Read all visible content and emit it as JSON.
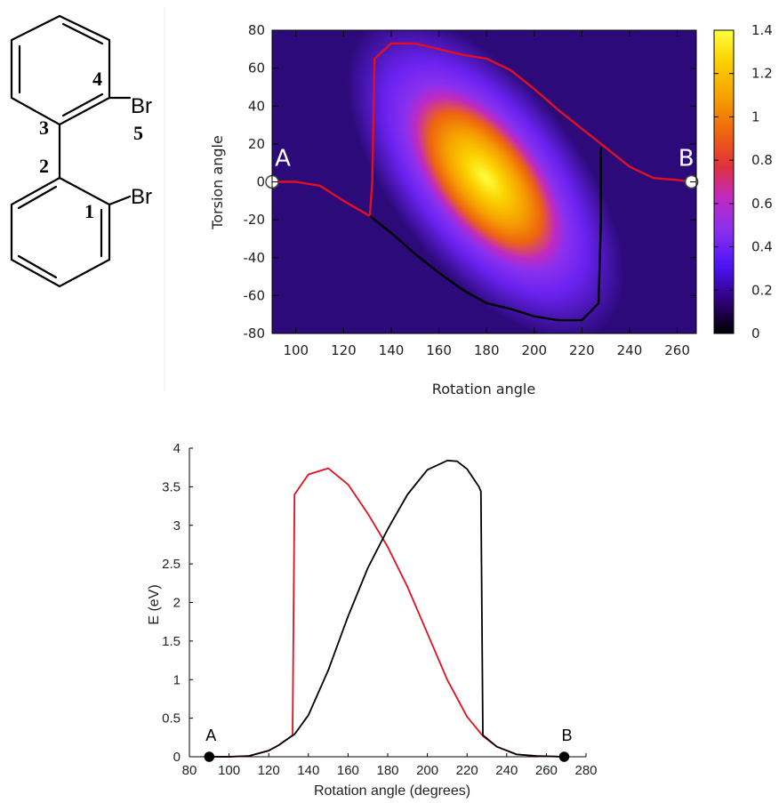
{
  "molecule": {
    "atoms": {
      "br_top": "Br",
      "br_bottom": "Br"
    },
    "numbers": [
      "1",
      "2",
      "3",
      "4",
      "5"
    ]
  },
  "chart_data": [
    {
      "type": "heatmap",
      "title": "",
      "xlabel": "Rotation angle",
      "ylabel": "Torsion angle",
      "xlim": [
        90,
        268
      ],
      "ylim": [
        -80,
        80
      ],
      "xticks": [
        "100",
        "120",
        "140",
        "160",
        "180",
        "200",
        "220",
        "240",
        "260"
      ],
      "yticks": [
        "-80",
        "-60",
        "-40",
        "-20",
        "0",
        "20",
        "40",
        "60",
        "80"
      ],
      "colorbar": {
        "range": [
          0,
          1.4
        ],
        "ticks": [
          "0",
          "0.2",
          "0.4",
          "0.6",
          "0.8",
          "1",
          "1.2",
          "1.4"
        ],
        "colormap": [
          "#000000",
          "#30007a",
          "#4b14f5",
          "#8a30ef",
          "#c02ac0",
          "#e0303c",
          "#ee6410",
          "#f6a000",
          "#fbd200",
          "#ffff40"
        ]
      },
      "peak": {
        "x": 180,
        "y": 0,
        "value": 1.4
      },
      "points": [
        {
          "label": "A",
          "x": 90,
          "y": 0
        },
        {
          "label": "B",
          "x": 266,
          "y": 0
        }
      ],
      "series": [
        {
          "color": "#e01020",
          "x": [
            90,
            100,
            110,
            120,
            131,
            132,
            133,
            140,
            150,
            160,
            170,
            180,
            190,
            200,
            210,
            220,
            230,
            240,
            250,
            260,
            266
          ],
          "y": [
            0,
            0,
            -2,
            -10,
            -18,
            0,
            65,
            73,
            73,
            70,
            67,
            65,
            59,
            49,
            38,
            28,
            18,
            8,
            2,
            1,
            0
          ]
        },
        {
          "color": "#000000",
          "x": [
            131,
            140,
            150,
            160,
            170,
            180,
            190,
            200,
            210,
            220,
            227,
            228,
            228
          ],
          "y": [
            -18,
            -27,
            -38,
            -48,
            -57,
            -64,
            -67,
            -71,
            -73,
            -73,
            -64,
            -20,
            18
          ]
        }
      ]
    },
    {
      "type": "line",
      "title": "",
      "xlabel": "Rotation angle (degrees)",
      "ylabel": "E (eV)",
      "xlim": [
        80,
        280
      ],
      "ylim": [
        0,
        4
      ],
      "xticks": [
        "80",
        "100",
        "120",
        "140",
        "160",
        "180",
        "200",
        "220",
        "240",
        "260",
        "280"
      ],
      "yticks": [
        "0",
        "0.5",
        "1",
        "1.5",
        "2",
        "2.5",
        "3",
        "3.5",
        "4"
      ],
      "points": [
        {
          "label": "A",
          "x": 90,
          "y": 0
        },
        {
          "label": "B",
          "x": 269,
          "y": 0
        }
      ],
      "series": [
        {
          "color": "#e01020",
          "x": [
            90,
            100,
            110,
            120,
            125,
            130,
            132,
            133,
            140,
            150,
            160,
            170,
            180,
            190,
            200,
            210,
            220,
            228,
            235,
            245,
            255,
            269
          ],
          "y": [
            0,
            0,
            0.01,
            0.08,
            0.15,
            0.24,
            0.28,
            3.4,
            3.66,
            3.74,
            3.53,
            3.15,
            2.72,
            2.2,
            1.6,
            1.0,
            0.52,
            0.27,
            0.13,
            0.03,
            0.01,
            0
          ]
        },
        {
          "color": "#000000",
          "x": [
            90,
            100,
            110,
            120,
            125,
            130,
            133,
            140,
            150,
            160,
            170,
            180,
            190,
            200,
            210,
            215,
            220,
            226,
            227,
            228,
            235,
            245,
            255,
            269
          ],
          "y": [
            0,
            0,
            0.01,
            0.08,
            0.15,
            0.24,
            0.29,
            0.54,
            1.12,
            1.82,
            2.45,
            2.95,
            3.4,
            3.72,
            3.84,
            3.83,
            3.73,
            3.5,
            3.44,
            0.28,
            0.13,
            0.03,
            0.01,
            0
          ]
        }
      ]
    }
  ]
}
